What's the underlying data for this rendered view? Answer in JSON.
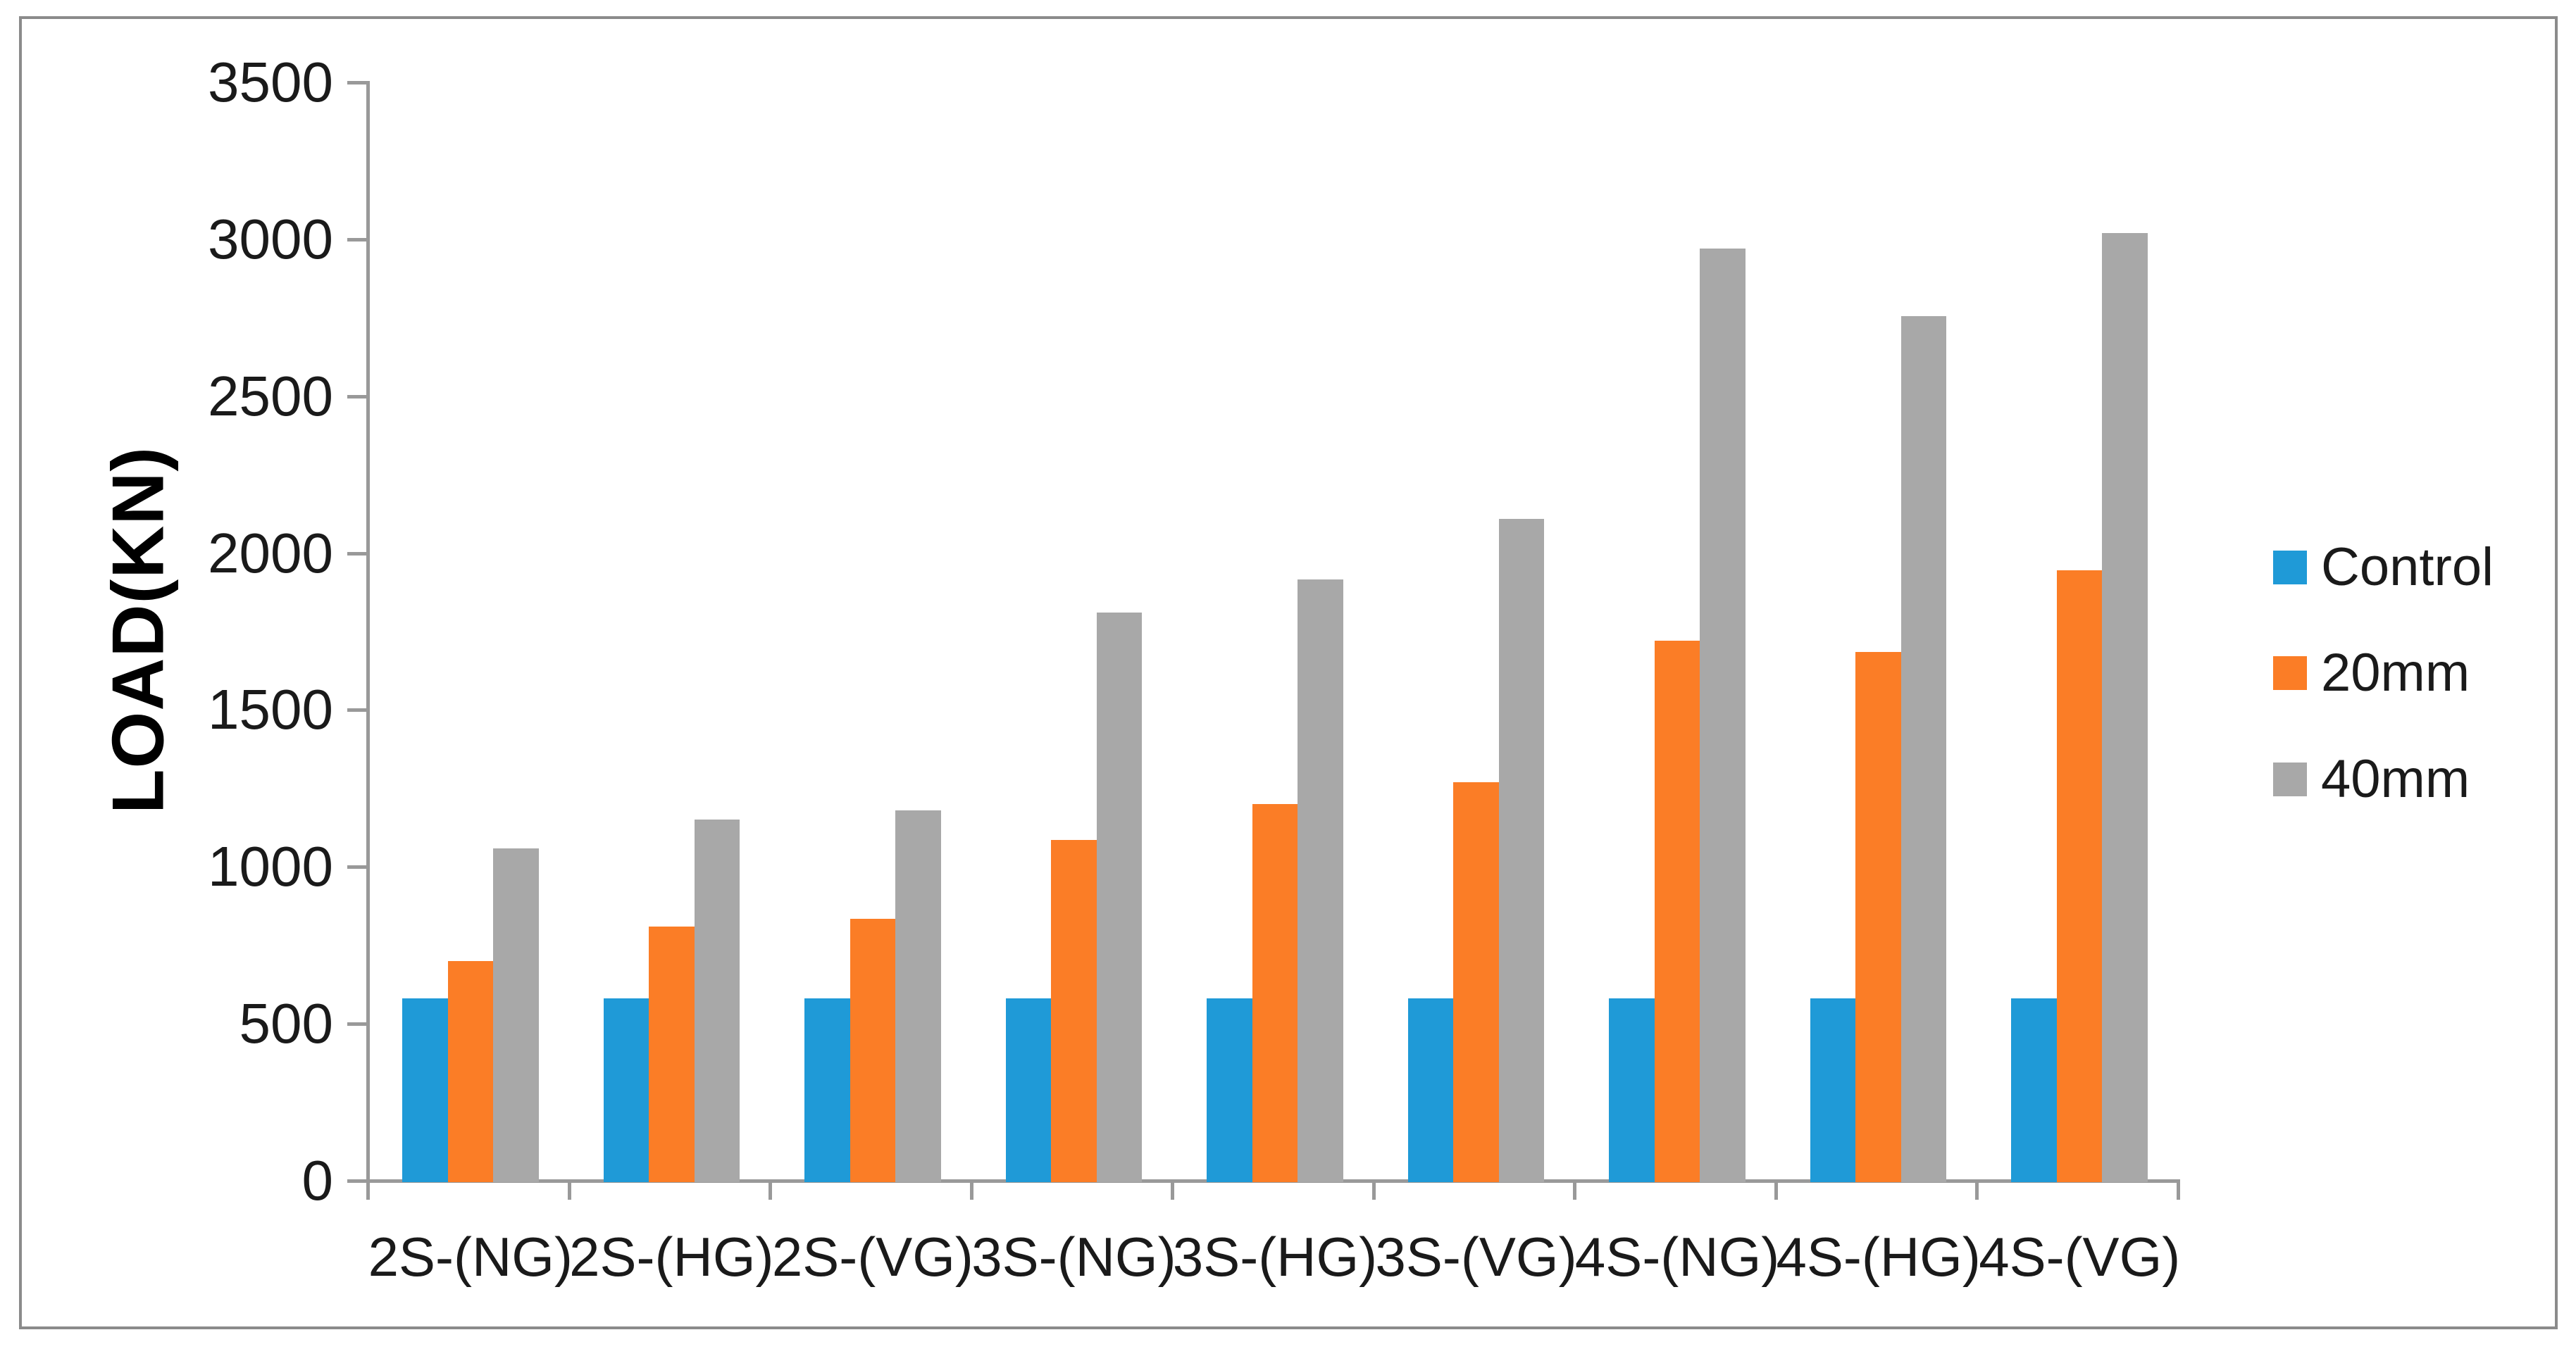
{
  "figure": {
    "background": "#FFFFFF",
    "border_color": "#8B8B8B"
  },
  "axis": {
    "line_color": "#999999",
    "text_color": "#1A1A1A"
  },
  "chart_data": {
    "type": "bar",
    "title": "",
    "ylabel": "LOAD(KN)",
    "xlabel": "",
    "ylim": [
      0,
      3500
    ],
    "ytick_step": 500,
    "yticks": [
      0,
      500,
      1000,
      1500,
      2000,
      2500,
      3000,
      3500
    ],
    "grid": false,
    "legend_position": "right",
    "categories": [
      "2S-(NG)",
      "2S-(HG)",
      "2S-(VG)",
      "3S-(NG)",
      "3S-(HG)",
      "3S-(VG)",
      "4S-(NG)",
      "4S-(HG)",
      "4S-(VG)"
    ],
    "series": [
      {
        "name": "Control",
        "color": "#1F9AD7",
        "values": [
          580,
          580,
          580,
          580,
          580,
          580,
          580,
          580,
          580
        ]
      },
      {
        "name": "20mm",
        "color": "#FB7D26",
        "values": [
          700,
          810,
          835,
          1085,
          1200,
          1270,
          1720,
          1685,
          1945
        ]
      },
      {
        "name": "40mm",
        "color": "#A8A8A8",
        "values": [
          1060,
          1150,
          1180,
          1810,
          1915,
          2110,
          2970,
          2755,
          3020
        ]
      }
    ]
  }
}
